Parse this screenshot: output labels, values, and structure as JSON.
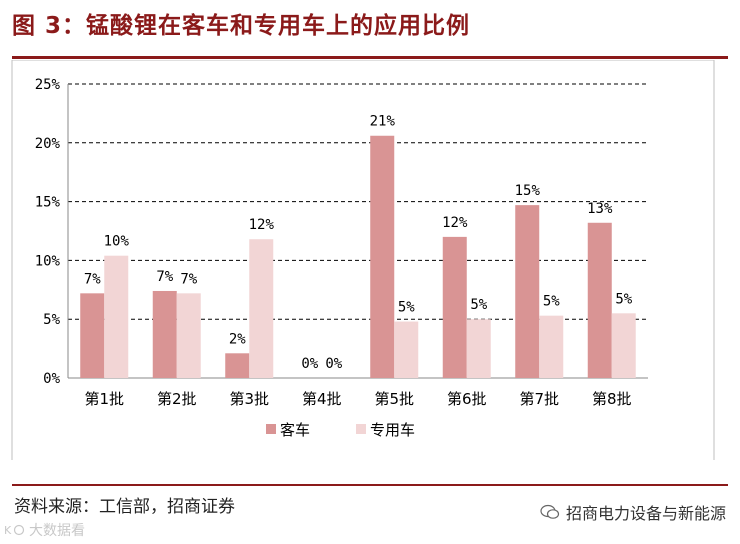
{
  "header": {
    "title": "图 3：锰酸锂在客车和专用车上的应用比例"
  },
  "footer": {
    "source": "资料来源：工信部，招商证券",
    "brand": "招商电力设备与新能源",
    "watermark": "大数据看"
  },
  "chart_data": {
    "type": "bar",
    "categories": [
      "第1批",
      "第2批",
      "第3批",
      "第4批",
      "第5批",
      "第6批",
      "第7批",
      "第8批"
    ],
    "series": [
      {
        "name": "客车",
        "color": "#d99494",
        "values": [
          7.2,
          7.4,
          2.1,
          0,
          20.6,
          12.0,
          14.7,
          13.2
        ],
        "labels": [
          "7%",
          "7%",
          "2%",
          "0%",
          "21%",
          "12%",
          "15%",
          "13%"
        ]
      },
      {
        "name": "专用车",
        "color": "#f2d5d5",
        "values": [
          10.4,
          7.2,
          11.8,
          0,
          4.8,
          5.0,
          5.3,
          5.5
        ],
        "labels": [
          "10%",
          "7%",
          "12%",
          "0%",
          "5%",
          "5%",
          "5%",
          "5%"
        ]
      }
    ],
    "yticks": [
      "0%",
      "5%",
      "10%",
      "15%",
      "20%",
      "25%"
    ],
    "ylim": [
      0,
      25
    ],
    "grid": "dashed horizontal",
    "legend_position": "bottom"
  }
}
